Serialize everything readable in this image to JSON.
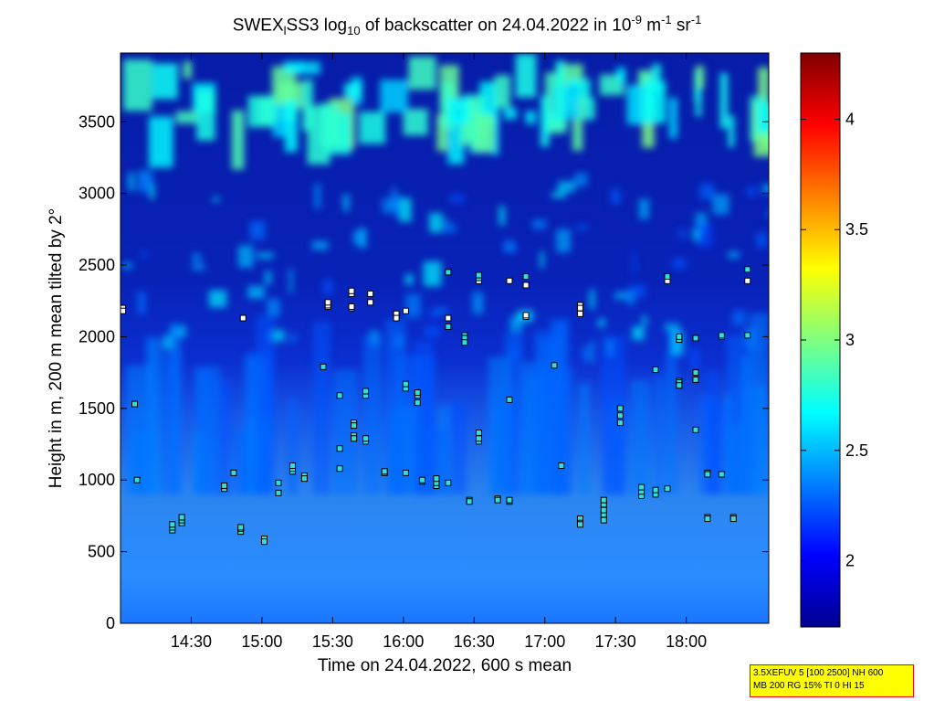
{
  "chart_data": {
    "type": "heatmap",
    "title": {
      "parts": [
        "SWEX",
        "l",
        "SS3 log",
        "10",
        " of backscatter on 24.04.2022 in 10",
        "-9",
        " m",
        "-1",
        " sr",
        "-1"
      ]
    },
    "xlabel": "Time on 24.04.2022, 600 s mean",
    "ylabel": "Height in m, 200 m mean tilted by 2°",
    "x_ticks": [
      "14:30",
      "15:00",
      "15:30",
      "16:00",
      "16:30",
      "17:00",
      "17:30",
      "18:00"
    ],
    "x_tick_minutes": [
      870,
      900,
      930,
      960,
      990,
      1020,
      1050,
      1080
    ],
    "xlim_minutes": [
      840,
      1115
    ],
    "y_ticks": [
      0,
      500,
      1000,
      1500,
      2000,
      2500,
      3000,
      3500
    ],
    "ylim": [
      0,
      3980
    ],
    "colorbar": {
      "ticks": [
        2,
        2.5,
        3,
        3.5,
        4
      ],
      "tick_labels": [
        "2",
        "2.5",
        "3",
        "3.5",
        "4"
      ],
      "range": [
        1.7,
        4.3
      ],
      "colormap": "jet"
    },
    "cloud_base_markers": [
      {
        "t": 841,
        "h": [
          2200,
          2180
        ]
      },
      {
        "t": 846,
        "h": [
          1530
        ]
      },
      {
        "t": 847,
        "h": [
          1000
        ]
      },
      {
        "t": 862,
        "h": [
          650,
          670,
          690
        ]
      },
      {
        "t": 866,
        "h": [
          700,
          720,
          740
        ]
      },
      {
        "t": 884,
        "h": [
          940,
          960
        ]
      },
      {
        "t": 888,
        "h": [
          1050
        ]
      },
      {
        "t": 891,
        "h": [
          640,
          660,
          670
        ]
      },
      {
        "t": 892,
        "h": [
          2130
        ]
      },
      {
        "t": 901,
        "h": [
          590,
          570
        ]
      },
      {
        "t": 907,
        "h": [
          910,
          980
        ]
      },
      {
        "t": 913,
        "h": [
          1060,
          1080,
          1100
        ]
      },
      {
        "t": 918,
        "h": [
          1030,
          1010
        ]
      },
      {
        "t": 926,
        "h": [
          1790
        ]
      },
      {
        "t": 928,
        "h": [
          2210,
          2220,
          2240
        ]
      },
      {
        "t": 933,
        "h": [
          1590,
          1220,
          1080
        ]
      },
      {
        "t": 938,
        "h": [
          2200,
          2210,
          2300,
          2320
        ]
      },
      {
        "t": 939,
        "h": [
          1400,
          1380,
          1310,
          1290
        ]
      },
      {
        "t": 944,
        "h": [
          1270,
          1290,
          1590,
          1620
        ]
      },
      {
        "t": 946,
        "h": [
          2300,
          2240
        ]
      },
      {
        "t": 952,
        "h": [
          1050,
          1060
        ]
      },
      {
        "t": 957,
        "h": [
          2150,
          2160,
          2130
        ]
      },
      {
        "t": 961,
        "h": [
          1050,
          1640,
          1670,
          2180
        ]
      },
      {
        "t": 966,
        "h": [
          1540,
          1590,
          1610
        ]
      },
      {
        "t": 968,
        "h": [
          990,
          1000
        ]
      },
      {
        "t": 974,
        "h": [
          960,
          980,
          1010
        ]
      },
      {
        "t": 979,
        "h": [
          980,
          2070,
          2130,
          2450
        ]
      },
      {
        "t": 986,
        "h": [
          2010,
          1990,
          1960
        ]
      },
      {
        "t": 988,
        "h": [
          860,
          850
        ]
      },
      {
        "t": 992,
        "h": [
          1270,
          1290,
          1330,
          2390,
          2410,
          2430
        ]
      },
      {
        "t": 1000,
        "h": [
          870,
          860
        ]
      },
      {
        "t": 1005,
        "h": [
          850,
          860,
          1560,
          2390
        ]
      },
      {
        "t": 1012,
        "h": [
          2140,
          2150,
          2360,
          2420
        ]
      },
      {
        "t": 1024,
        "h": [
          1800
        ]
      },
      {
        "t": 1027,
        "h": [
          1100
        ]
      },
      {
        "t": 1035,
        "h": [
          730,
          700,
          690,
          2220,
          2200,
          2160
        ]
      },
      {
        "t": 1045,
        "h": [
          720,
          760,
          790,
          830,
          860
        ]
      },
      {
        "t": 1052,
        "h": [
          1400,
          1450,
          1500
        ]
      },
      {
        "t": 1061,
        "h": [
          890,
          920,
          950
        ]
      },
      {
        "t": 1067,
        "h": [
          900,
          930,
          1770
        ]
      },
      {
        "t": 1072,
        "h": [
          940,
          2390,
          2420
        ]
      },
      {
        "t": 1077,
        "h": [
          1690,
          1680,
          1660,
          1980,
          2000
        ]
      },
      {
        "t": 1084,
        "h": [
          1700,
          1750,
          1990,
          1350
        ]
      },
      {
        "t": 1089,
        "h": [
          1050,
          1040,
          740,
          730
        ]
      },
      {
        "t": 1095,
        "h": [
          1040,
          2000,
          2010
        ]
      },
      {
        "t": 1100,
        "h": [
          740,
          730
        ]
      },
      {
        "t": 1106,
        "h": [
          2470,
          2390,
          2010
        ]
      }
    ]
  },
  "info_box": {
    "line1": "3.5XEFUV 5 [100 2500] NH 600",
    "line2": "MB 200 RG 15% TI 0 HI 15"
  }
}
